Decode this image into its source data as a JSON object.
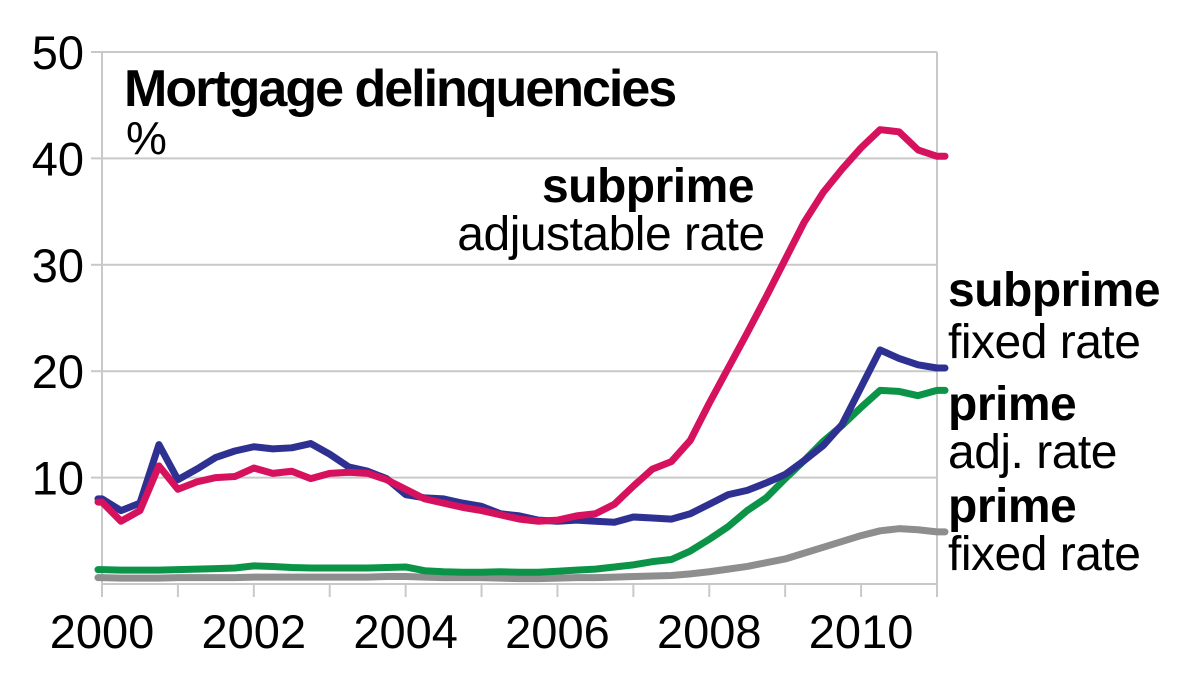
{
  "title": "Mortgage delinquencies",
  "unit_label": "%",
  "colors": {
    "grid": "#C9C9C9",
    "text": "#000000",
    "background": "#FFFFFF"
  },
  "legend": {
    "subprime_arm": {
      "line1": "subprime",
      "line2": "adjustable rate"
    },
    "subprime_fixed": {
      "line1": "subprime",
      "line2": "fixed rate"
    },
    "prime_arm": {
      "line1": "prime",
      "line2": "adj. rate"
    },
    "prime_fixed": {
      "line1": "prime",
      "line2": "fixed rate"
    }
  },
  "chart_data": {
    "type": "line",
    "title": "Mortgage delinquencies",
    "ylabel": "%",
    "xlabel": "",
    "xlim": [
      2000,
      2011
    ],
    "ylim": [
      0,
      50
    ],
    "grid": true,
    "legend_position": "right-of-lines",
    "x_start": 2000.0,
    "x_step": 0.25,
    "x_year_ticks": [
      2000,
      2001,
      2002,
      2003,
      2004,
      2005,
      2006,
      2007,
      2008,
      2009,
      2010,
      2011
    ],
    "x_labeled_ticks": [
      2000,
      2002,
      2004,
      2006,
      2008,
      2010
    ],
    "y_ticks": [
      10,
      20,
      30,
      40,
      50
    ],
    "series": [
      {
        "key": "subprime_arm",
        "name": "subprime adjustable rate",
        "color": "#D6115E",
        "values": [
          7.7,
          5.9,
          6.9,
          11.1,
          8.9,
          9.6,
          10.0,
          10.1,
          10.9,
          10.4,
          10.6,
          9.9,
          10.4,
          10.5,
          10.4,
          9.8,
          8.9,
          8.0,
          7.6,
          7.2,
          6.9,
          6.5,
          6.1,
          5.9,
          6.0,
          6.4,
          6.6,
          7.5,
          9.2,
          10.8,
          11.5,
          13.5,
          17.0,
          20.3,
          23.6,
          27.0,
          30.5,
          34.0,
          36.8,
          39.0,
          41.0,
          42.7,
          42.5,
          40.8,
          40.2
        ]
      },
      {
        "key": "subprime_fixed",
        "name": "subprime fixed rate",
        "color": "#2E3192",
        "values": [
          8.0,
          6.9,
          7.6,
          13.1,
          9.8,
          10.8,
          11.9,
          12.5,
          12.9,
          12.7,
          12.8,
          13.2,
          12.2,
          11.0,
          10.6,
          9.9,
          8.4,
          8.1,
          8.0,
          7.6,
          7.3,
          6.6,
          6.4,
          6.0,
          5.9,
          6.0,
          5.9,
          5.8,
          6.3,
          6.2,
          6.1,
          6.6,
          7.5,
          8.4,
          8.8,
          9.5,
          10.3,
          11.6,
          13.0,
          15.0,
          18.5,
          22.0,
          21.2,
          20.6,
          20.3
        ]
      },
      {
        "key": "prime_arm",
        "name": "prime adjustable rate",
        "color": "#0B9447",
        "values": [
          1.35,
          1.3,
          1.3,
          1.3,
          1.35,
          1.4,
          1.45,
          1.5,
          1.7,
          1.65,
          1.55,
          1.5,
          1.5,
          1.5,
          1.5,
          1.55,
          1.6,
          1.25,
          1.15,
          1.1,
          1.1,
          1.15,
          1.1,
          1.1,
          1.2,
          1.3,
          1.4,
          1.6,
          1.8,
          2.1,
          2.3,
          3.1,
          4.2,
          5.4,
          6.9,
          8.1,
          9.9,
          11.6,
          13.4,
          14.9,
          16.6,
          18.2,
          18.1,
          17.7,
          18.2
        ]
      },
      {
        "key": "prime_fixed",
        "name": "prime fixed rate",
        "color": "#8E8E8E",
        "values": [
          0.6,
          0.55,
          0.55,
          0.55,
          0.6,
          0.6,
          0.6,
          0.6,
          0.65,
          0.65,
          0.65,
          0.65,
          0.65,
          0.65,
          0.65,
          0.7,
          0.7,
          0.65,
          0.6,
          0.6,
          0.6,
          0.55,
          0.5,
          0.5,
          0.55,
          0.6,
          0.6,
          0.65,
          0.7,
          0.75,
          0.8,
          0.95,
          1.15,
          1.4,
          1.65,
          2.0,
          2.35,
          2.9,
          3.45,
          4.0,
          4.55,
          5.0,
          5.2,
          5.1,
          4.9
        ]
      }
    ]
  }
}
